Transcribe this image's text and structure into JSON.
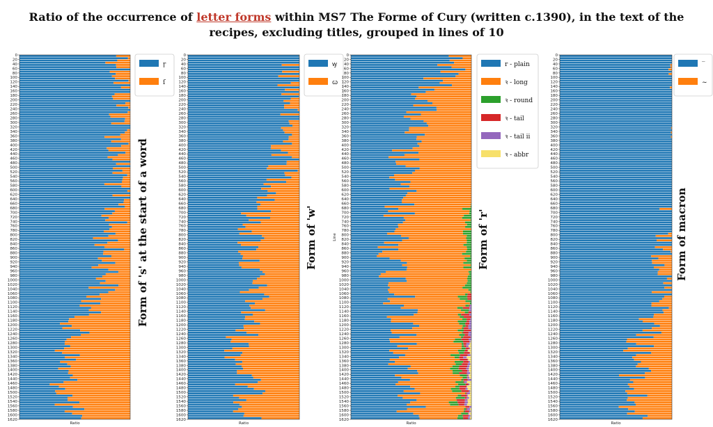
{
  "title": {
    "before": "Ratio of the occurrence of ",
    "link": "letter forms",
    "after_line1": " within MS7 The Forme of Cury (written c.1390), in the text of the",
    "line2": "recipes, excluding titles, grouped in lines of 10"
  },
  "colors": {
    "blue": "#1f77b4",
    "orange": "#ff7f0e",
    "green": "#2ca02c",
    "red": "#d62728",
    "purple": "#9467bd",
    "yellow": "#f7e06a"
  },
  "chart_data": [
    {
      "type": "bar",
      "orientation": "horizontal-stacked",
      "title": "Form of 's' at the start of a word",
      "xlabel": "Ratio",
      "ylabel": "",
      "ylim": [
        0,
        1620
      ],
      "yticks": [
        0,
        20,
        40,
        60,
        80,
        100,
        120,
        140,
        160,
        180,
        200,
        220,
        240,
        260,
        280,
        300,
        320,
        340,
        360,
        380,
        400,
        420,
        440,
        460,
        480,
        500,
        520,
        540,
        560,
        580,
        600,
        620,
        640,
        660,
        680,
        700,
        720,
        740,
        760,
        780,
        800,
        820,
        840,
        860,
        880,
        900,
        920,
        940,
        960,
        980,
        1000,
        1020,
        1040,
        1060,
        1080,
        1100,
        1120,
        1140,
        1160,
        1180,
        1200,
        1220,
        1240,
        1260,
        1280,
        1300,
        1320,
        1340,
        1360,
        1380,
        1400,
        1420,
        1440,
        1460,
        1480,
        1500,
        1520,
        1540,
        1560,
        1580,
        1600,
        1620
      ],
      "row_step": 10,
      "legend": "top-right",
      "series": [
        {
          "name": "ꞅ",
          "color": "#1f77b4"
        },
        {
          "name": "ſ",
          "color": "#ff7f0e"
        }
      ],
      "trend": [
        [
          0,
          0.08
        ],
        [
          200,
          0.05
        ],
        [
          400,
          0.1
        ],
        [
          600,
          0.1
        ],
        [
          800,
          0.2
        ],
        [
          1000,
          0.2
        ],
        [
          1200,
          0.5
        ],
        [
          1400,
          0.6
        ],
        [
          1620,
          0.55
        ]
      ]
    },
    {
      "type": "bar",
      "orientation": "horizontal-stacked",
      "title": "Form of 'w'",
      "xlabel": "Ratio",
      "ylabel": "",
      "ylim": [
        0,
        1620
      ],
      "yticks": [
        0,
        20,
        40,
        60,
        80,
        100,
        120,
        140,
        160,
        180,
        200,
        220,
        240,
        260,
        280,
        300,
        320,
        340,
        360,
        380,
        400,
        420,
        440,
        460,
        480,
        500,
        520,
        540,
        560,
        580,
        600,
        620,
        640,
        660,
        680,
        700,
        720,
        740,
        760,
        780,
        800,
        820,
        840,
        860,
        880,
        900,
        920,
        940,
        960,
        980,
        1000,
        1020,
        1040,
        1060,
        1080,
        1100,
        1120,
        1140,
        1160,
        1180,
        1200,
        1220,
        1240,
        1260,
        1280,
        1300,
        1320,
        1340,
        1360,
        1380,
        1400,
        1420,
        1440,
        1460,
        1480,
        1500,
        1520,
        1540,
        1560,
        1580,
        1600,
        1620
      ],
      "row_step": 10,
      "legend": "top-right",
      "series": [
        {
          "name": "ꝡ",
          "color": "#1f77b4"
        },
        {
          "name": "ꞷ",
          "color": "#ff7f0e"
        }
      ],
      "trend": [
        [
          0,
          0.02
        ],
        [
          300,
          0.1
        ],
        [
          500,
          0.15
        ],
        [
          600,
          0.2
        ],
        [
          700,
          0.4
        ],
        [
          900,
          0.45
        ],
        [
          1100,
          0.4
        ],
        [
          1300,
          0.55
        ],
        [
          1500,
          0.45
        ],
        [
          1620,
          0.45
        ]
      ]
    },
    {
      "type": "bar",
      "orientation": "horizontal-stacked",
      "title": "Form of 'r'",
      "xlabel": "Ratio",
      "ylabel": "Line",
      "ylim": [
        0,
        1620
      ],
      "yticks": [
        0,
        20,
        40,
        60,
        80,
        100,
        120,
        140,
        160,
        180,
        200,
        220,
        240,
        260,
        280,
        300,
        320,
        340,
        360,
        380,
        400,
        420,
        440,
        460,
        480,
        500,
        520,
        540,
        560,
        580,
        600,
        620,
        640,
        660,
        680,
        700,
        720,
        740,
        760,
        780,
        800,
        820,
        840,
        860,
        880,
        900,
        920,
        940,
        960,
        980,
        1000,
        1020,
        1040,
        1060,
        1080,
        1100,
        1120,
        1140,
        1160,
        1180,
        1200,
        1220,
        1240,
        1260,
        1280,
        1300,
        1320,
        1340,
        1360,
        1380,
        1400,
        1420,
        1440,
        1460,
        1480,
        1500,
        1520,
        1540,
        1560,
        1580,
        1600,
        1620
      ],
      "row_step": 10,
      "legend": "top-right",
      "series": [
        {
          "name": "r - plain",
          "color": "#1f77b4"
        },
        {
          "name": "ꝛ - long",
          "color": "#ff7f0e"
        },
        {
          "name": "ꝛ - round",
          "color": "#2ca02c"
        },
        {
          "name": "ꝛ - tail",
          "color": "#d62728"
        },
        {
          "name": "ꝛ - tail ii",
          "color": "#9467bd"
        },
        {
          "name": "ꝛ - abbr",
          "color": "#f7e06a"
        }
      ],
      "trend": [
        [
          0,
          0.1
        ],
        [
          200,
          0.4
        ],
        [
          400,
          0.55
        ],
        [
          600,
          0.6
        ],
        [
          700,
          0.6
        ],
        [
          900,
          0.65
        ],
        [
          1100,
          0.6
        ],
        [
          1300,
          0.55
        ],
        [
          1500,
          0.55
        ],
        [
          1620,
          0.5
        ]
      ]
    },
    {
      "type": "bar",
      "orientation": "horizontal-stacked",
      "title": "Form of macron",
      "xlabel": "Ratio",
      "ylabel": "",
      "ylim": [
        0,
        1620
      ],
      "yticks": [
        0,
        20,
        40,
        60,
        80,
        100,
        120,
        140,
        160,
        180,
        200,
        220,
        240,
        260,
        280,
        300,
        320,
        340,
        360,
        380,
        400,
        420,
        440,
        460,
        480,
        500,
        520,
        540,
        560,
        580,
        600,
        620,
        640,
        660,
        680,
        700,
        720,
        740,
        760,
        780,
        800,
        820,
        840,
        860,
        880,
        900,
        920,
        940,
        960,
        980,
        1000,
        1020,
        1040,
        1060,
        1080,
        1100,
        1120,
        1140,
        1160,
        1180,
        1200,
        1220,
        1240,
        1260,
        1280,
        1300,
        1320,
        1340,
        1360,
        1380,
        1400,
        1420,
        1440,
        1460,
        1480,
        1500,
        1520,
        1540,
        1560,
        1580,
        1600,
        1620
      ],
      "row_step": 10,
      "legend": "top-right",
      "series": [
        {
          "name": "‾",
          "color": "#1f77b4"
        },
        {
          "name": "~",
          "color": "#ff7f0e"
        }
      ],
      "trend": [
        [
          0,
          0.01
        ],
        [
          800,
          0.03
        ],
        [
          1100,
          0.05
        ],
        [
          1200,
          0.2
        ],
        [
          1300,
          0.3
        ],
        [
          1500,
          0.35
        ],
        [
          1620,
          0.35
        ]
      ]
    }
  ]
}
